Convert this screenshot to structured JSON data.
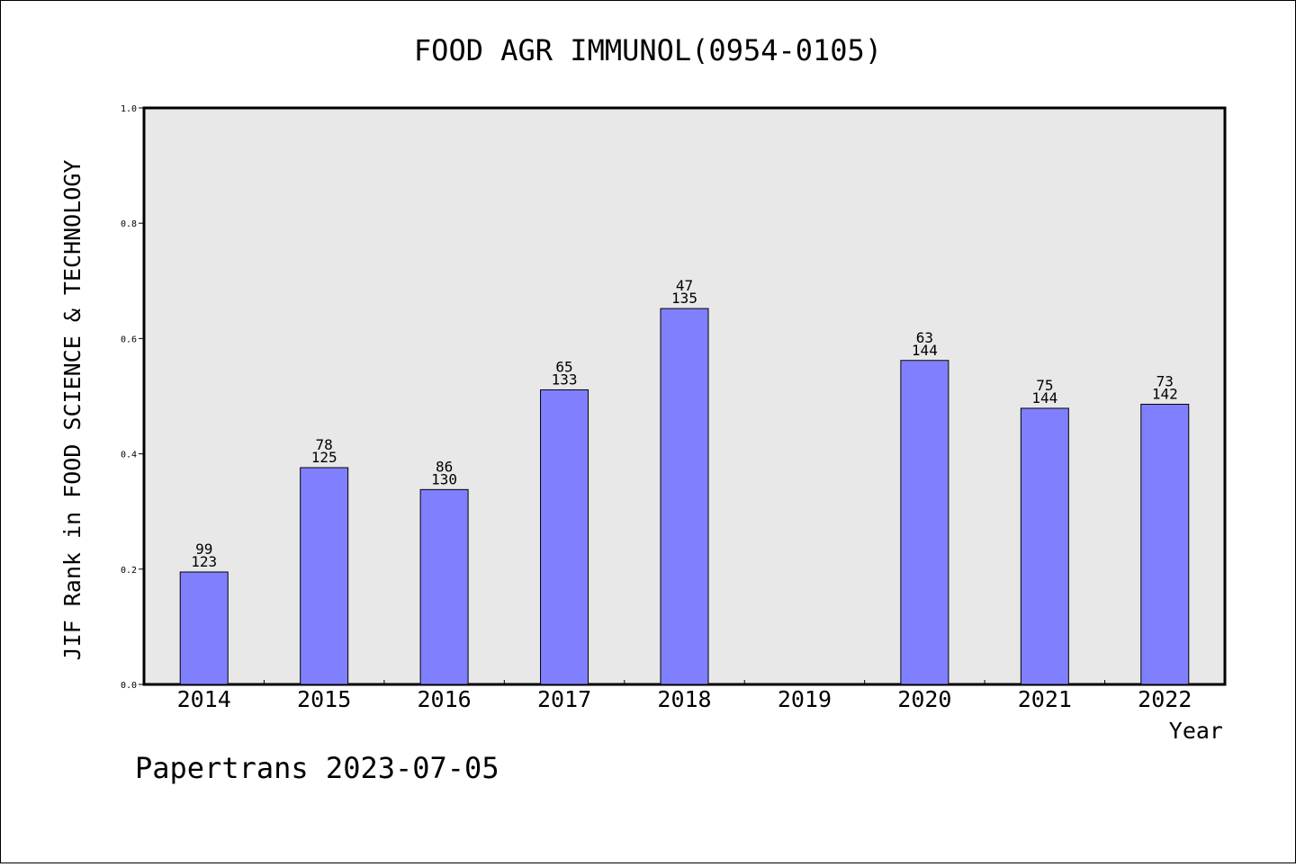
{
  "colors": {
    "plot_background": "#e8e8e8",
    "bar_fill": "#8080ff",
    "bar_stroke": "#000000"
  },
  "chart_data": {
    "type": "bar",
    "title": "FOOD AGR IMMUNOL(0954-0105)",
    "xlabel": "Year",
    "ylabel": "JIF Rank in FOOD SCIENCE & TECHNOLOGY",
    "ylim": [
      0.0,
      1.0
    ],
    "yticks": [
      "0.0",
      "0.2",
      "0.4",
      "0.6",
      "0.8",
      "1.0"
    ],
    "categories": [
      "2014",
      "2015",
      "2016",
      "2017",
      "2018",
      "2019",
      "2020",
      "2021",
      "2022"
    ],
    "values": [
      0.195,
      0.376,
      0.338,
      0.511,
      0.652,
      null,
      0.562,
      0.479,
      0.486
    ],
    "rank": [
      "99",
      "78",
      "86",
      "65",
      "47",
      null,
      "63",
      "75",
      "73"
    ],
    "total": [
      "123",
      "125",
      "130",
      "133",
      "135",
      null,
      "144",
      "144",
      "142"
    ],
    "grid": false,
    "legend": "none"
  },
  "footer": "Papertrans 2023-07-05"
}
